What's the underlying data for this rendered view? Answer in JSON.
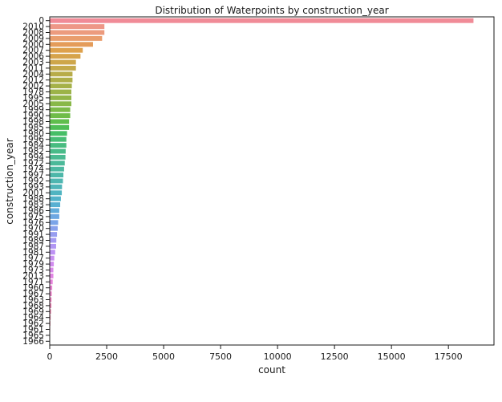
{
  "chart_data": {
    "type": "bar",
    "orientation": "horizontal",
    "title": "Distribution of Waterpoints by construction_year",
    "xlabel": "count",
    "ylabel": "construction_year",
    "xlim": [
      0,
      19500
    ],
    "xticks": [
      0,
      2500,
      5000,
      7500,
      10000,
      12500,
      15000,
      17500
    ],
    "grid": false,
    "legend": "none",
    "categories": [
      "0",
      "2010",
      "2008",
      "2009",
      "2000",
      "2007",
      "2006",
      "2003",
      "2011",
      "2004",
      "2012",
      "2002",
      "1978",
      "1995",
      "2005",
      "1999",
      "1990",
      "1998",
      "1985",
      "1980",
      "1996",
      "1984",
      "1982",
      "1994",
      "1972",
      "1974",
      "1997",
      "1992",
      "1993",
      "2001",
      "1988",
      "1983",
      "1986",
      "1975",
      "1976",
      "1970",
      "1991",
      "1989",
      "1987",
      "1981",
      "1977",
      "1979",
      "1973",
      "2013",
      "1971",
      "1960",
      "1967",
      "1963",
      "1968",
      "1969",
      "1964",
      "1962",
      "1961",
      "1965",
      "1966"
    ],
    "values": [
      18600,
      2400,
      2400,
      2300,
      1900,
      1450,
      1350,
      1150,
      1150,
      1000,
      1000,
      970,
      950,
      950,
      950,
      900,
      900,
      850,
      850,
      760,
      730,
      730,
      700,
      690,
      660,
      630,
      600,
      580,
      540,
      530,
      490,
      460,
      420,
      420,
      370,
      350,
      320,
      290,
      280,
      240,
      200,
      180,
      160,
      160,
      130,
      110,
      90,
      80,
      75,
      60,
      40,
      30,
      20,
      15,
      10
    ],
    "colors": [
      "#f08b97",
      "#ee9787",
      "#ec9b7e",
      "#e99d6d",
      "#e49c5a",
      "#dea14c",
      "#d6a34b",
      "#cea64a",
      "#c4a94a",
      "#b8ac49",
      "#aeae48",
      "#a5b148",
      "#9cb348",
      "#92b548",
      "#88b848",
      "#7cba48",
      "#6fbc49",
      "#60be4d",
      "#4fbe56",
      "#46be67",
      "#47bd75",
      "#48bc80",
      "#49bb89",
      "#4aba91",
      "#4bb999",
      "#4cb8a1",
      "#4db7a9",
      "#4eb6b1",
      "#4fb5b9",
      "#50b4c1",
      "#52b2c9",
      "#58b0d2",
      "#62acdb",
      "#6ea8e2",
      "#7ba4e8",
      "#89a1ec",
      "#979df0",
      "#a49af2",
      "#b196f4",
      "#bd92f4",
      "#c88ff2",
      "#d18bef",
      "#da88ea",
      "#e185e3",
      "#e683db",
      "#e983d2",
      "#eb83c9",
      "#ed84c0",
      "#ee85b7",
      "#ef87ae",
      "#ef88a6",
      "#f0899e",
      "#f08a97",
      "#f08b92",
      "#f08b8e"
    ]
  }
}
